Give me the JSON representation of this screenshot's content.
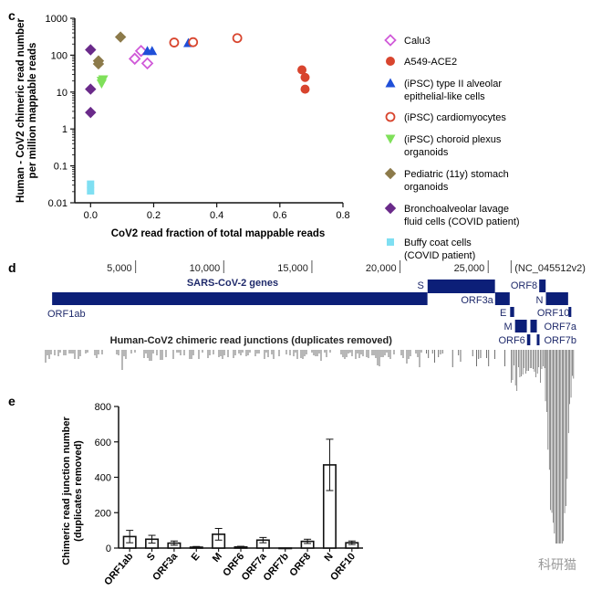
{
  "panels": {
    "c": "c",
    "d": "d",
    "e": "e"
  },
  "watermark": "科研猫",
  "chart_data": [
    {
      "type": "scatter",
      "panel": "c",
      "xlabel": "CoV2 read fraction of total mappable reads",
      "ylabel": [
        "Human - CoV2 chimeric read number",
        "per million mappable reads"
      ],
      "xscale": "linear",
      "yscale": "log",
      "xlim": [
        -0.05,
        0.8
      ],
      "ylim": [
        0.01,
        1000
      ],
      "xticks": [
        "0.0",
        "0.2",
        "0.4",
        "0.6",
        "0.8"
      ],
      "yticks": [
        "0.01",
        "0.1",
        "1",
        "10",
        "100",
        "1000"
      ],
      "grid": false,
      "legend_position": "right",
      "series": [
        {
          "name": "Calu3",
          "marker": "diamond-open",
          "color": "#d05ad8",
          "points": [
            [
              0.14,
              80
            ],
            [
              0.16,
              130
            ],
            [
              0.18,
              60
            ]
          ]
        },
        {
          "name": "A549-ACE2",
          "marker": "circle",
          "color": "#d8452e",
          "points": [
            [
              0.67,
              40
            ],
            [
              0.68,
              25
            ],
            [
              0.68,
              12
            ]
          ]
        },
        {
          "name": "(iPSC) type II alveolar\nepithelial-like cells",
          "marker": "triangle",
          "color": "#1f4fd8",
          "points": [
            [
              0.18,
              130
            ],
            [
              0.195,
              130
            ],
            [
              0.31,
              215
            ]
          ]
        },
        {
          "name": "(iPSC) cardiomyocytes",
          "marker": "circle-open",
          "color": "#d8452e",
          "points": [
            [
              0.265,
              220
            ],
            [
              0.325,
              225
            ],
            [
              0.465,
              290
            ]
          ]
        },
        {
          "name": "(iPSC) choroid plexus\norganoids",
          "marker": "triangle-down",
          "color": "#7fe05a",
          "points": [
            [
              0.035,
              20
            ],
            [
              0.035,
              17
            ],
            [
              0.04,
              22
            ]
          ]
        },
        {
          "name": "Pediatric (11y) stomach\norganoids",
          "marker": "diamond",
          "color": "#8c7a4a",
          "points": [
            [
              0.025,
              70
            ],
            [
              0.025,
              58
            ],
            [
              0.095,
              310
            ]
          ]
        },
        {
          "name": "Bronchoalveolar lavage\nfluid cells (COVID patient)",
          "marker": "diamond",
          "color": "#6a2a8a",
          "points": [
            [
              0.0,
              140
            ],
            [
              0.0,
              12
            ],
            [
              0.0,
              2.8
            ]
          ]
        },
        {
          "name": "Buffy coat cells\n(COVID patient)",
          "marker": "square",
          "color": "#7fdff2",
          "points": [
            [
              0.0,
              0.032
            ],
            [
              0.0,
              0.021
            ]
          ]
        }
      ]
    },
    {
      "type": "genome-track",
      "panel": "d",
      "ruler_ticks": [
        "5,000",
        "10,000",
        "15,000",
        "20,000",
        "25,000"
      ],
      "ruler_positions": [
        5000,
        10000,
        15000,
        20000,
        25000
      ],
      "accession": "(NC_045512v2)",
      "genome_length": 29903,
      "track_title": "SARS-CoV-2 genes",
      "junction_title": "Human-CoV2 chimeric read junctions (duplicates removed)",
      "genes": [
        {
          "name": "ORF1ab",
          "start": 266,
          "end": 21555
        },
        {
          "name": "S",
          "start": 21563,
          "end": 25384
        },
        {
          "name": "ORF3a",
          "start": 25393,
          "end": 26220
        },
        {
          "name": "E",
          "start": 26245,
          "end": 26472
        },
        {
          "name": "M",
          "start": 26523,
          "end": 27191
        },
        {
          "name": "ORF6",
          "start": 27202,
          "end": 27387
        },
        {
          "name": "ORF7a",
          "start": 27394,
          "end": 27759
        },
        {
          "name": "ORF7b",
          "start": 27756,
          "end": 27887
        },
        {
          "name": "ORF8",
          "start": 27894,
          "end": 28259
        },
        {
          "name": "N",
          "start": 28274,
          "end": 29533
        },
        {
          "name": "ORF10",
          "start": 29558,
          "end": 29674
        }
      ]
    },
    {
      "type": "bar",
      "panel": "e",
      "ylabel": [
        "Chimeric read junction number",
        "(duplicates removed)"
      ],
      "ylim": [
        0,
        800
      ],
      "yticks": [
        "0",
        "200",
        "400",
        "600",
        "800"
      ],
      "categories": [
        "ORF1ab",
        "S",
        "ORF3a",
        "E",
        "M",
        "ORF6",
        "ORF7a",
        "ORF7b",
        "ORF8",
        "N",
        "ORF10"
      ],
      "values": [
        65,
        50,
        28,
        5,
        78,
        6,
        45,
        0,
        38,
        470,
        30
      ],
      "errors": [
        35,
        22,
        12,
        4,
        33,
        4,
        15,
        0,
        12,
        145,
        10
      ],
      "grid": false
    }
  ]
}
